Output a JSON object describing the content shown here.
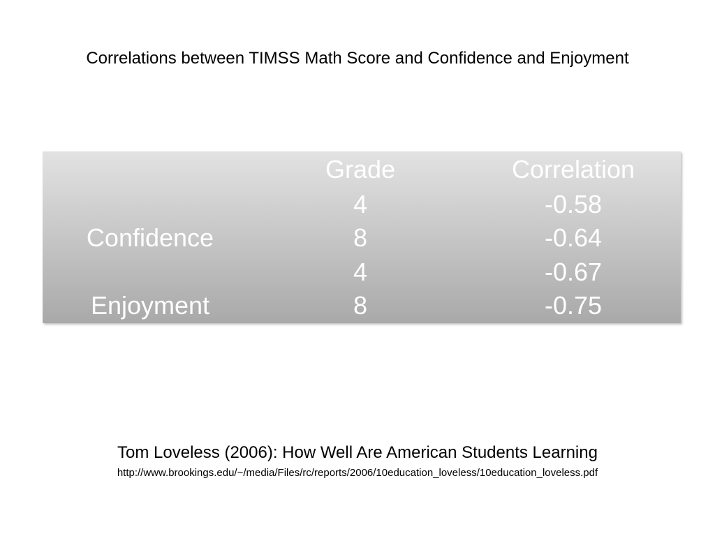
{
  "title": "Correlations between TIMSS Math Score and Confidence and Enjoyment",
  "table": {
    "headers": {
      "label": "",
      "grade": "Grade",
      "correlation": "Correlation"
    },
    "rows": [
      {
        "label": "",
        "grade": "4",
        "correlation": "-0.58"
      },
      {
        "label": "Confidence",
        "grade": "8",
        "correlation": "-0.64"
      },
      {
        "label": "",
        "grade": "4",
        "correlation": "-0.67"
      },
      {
        "label": "Enjoyment",
        "grade": "8",
        "correlation": "-0.75"
      }
    ]
  },
  "citation": {
    "text": "Tom Loveless (2006): How Well Are American Students Learning",
    "url": "http://www.brookings.edu/~/media/Files/rc/reports/2006/10education_loveless/10education_loveless.pdf"
  },
  "colors": {
    "table_top": "#e2e2e2",
    "table_bottom": "#a9a9a9",
    "table_text": "#ffffff"
  }
}
